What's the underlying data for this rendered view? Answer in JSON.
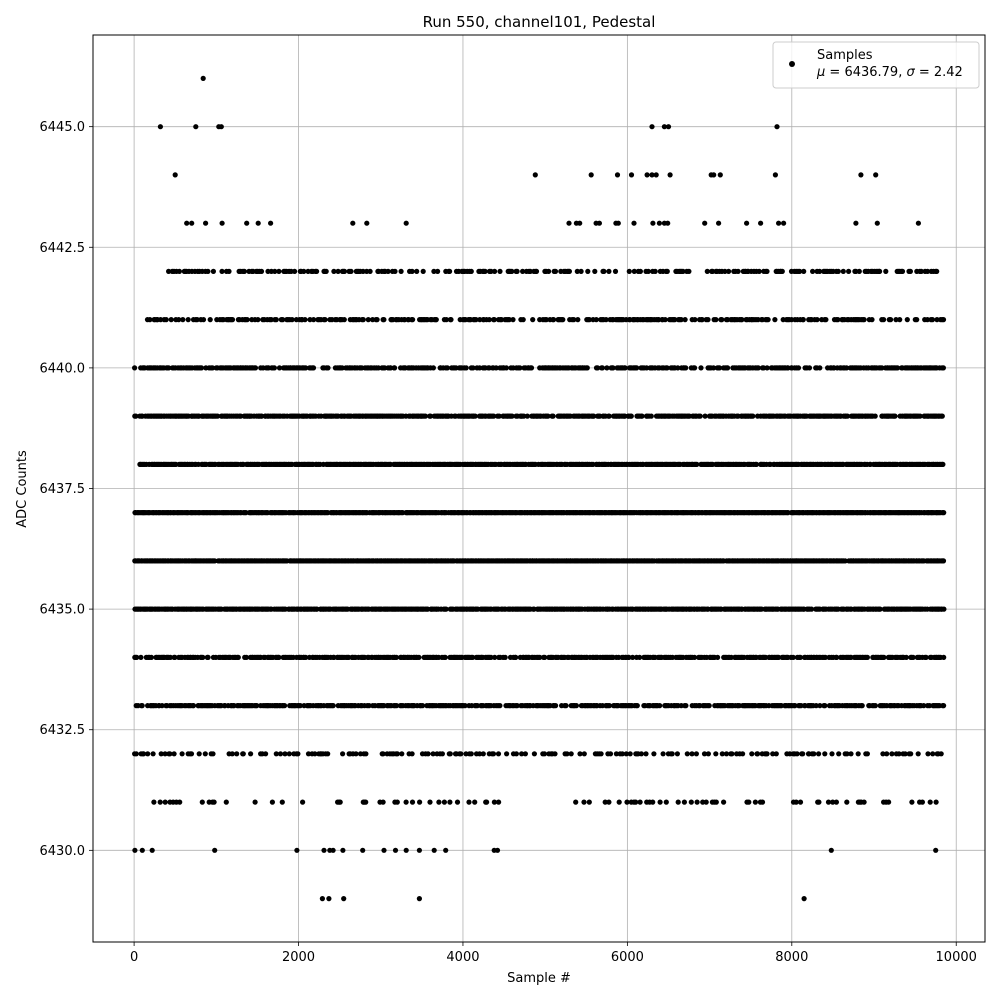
{
  "chart_data": {
    "type": "scatter",
    "title": "Run 550, channel101, Pedestal",
    "xlabel": "Sample #",
    "ylabel": "ADC Counts",
    "xlim": [
      -500,
      10350
    ],
    "ylim": [
      6428.1,
      6446.9
    ],
    "xticks": [
      0,
      2000,
      4000,
      6000,
      8000,
      10000
    ],
    "xtick_labels": [
      "0",
      "2000",
      "4000",
      "6000",
      "8000",
      "10000"
    ],
    "yticks": [
      6430.0,
      6432.5,
      6435.0,
      6437.5,
      6440.0,
      6442.5,
      6445.0
    ],
    "ytick_labels": [
      "6430.0",
      "6432.5",
      "6435.0",
      "6437.5",
      "6440.0",
      "6442.5",
      "6445.0"
    ],
    "grid": true,
    "legend_position": "top-right",
    "marker_color": "#000000",
    "series": [
      {
        "name": "Samples",
        "legend_stats": "μ = 6436.79, σ = 2.42",
        "points": [
          [
            840,
            6446
          ],
          [
            320,
            6445
          ],
          [
            750,
            6445
          ],
          [
            1030,
            6445
          ],
          [
            1060,
            6445
          ],
          [
            6300,
            6445
          ],
          [
            6450,
            6445
          ],
          [
            6500,
            6445
          ],
          [
            7820,
            6445
          ],
          [
            500,
            6444
          ],
          [
            4880,
            6444
          ],
          [
            5560,
            6444
          ],
          [
            5880,
            6444
          ],
          [
            6050,
            6444
          ],
          [
            6240,
            6444
          ],
          [
            6300,
            6444
          ],
          [
            6350,
            6444
          ],
          [
            6520,
            6444
          ],
          [
            7020,
            6444
          ],
          [
            7050,
            6444
          ],
          [
            7130,
            6444
          ],
          [
            7800,
            6444
          ],
          [
            8840,
            6444
          ],
          [
            9020,
            6444
          ],
          [
            640,
            6443
          ],
          [
            700,
            6443
          ],
          [
            870,
            6443
          ],
          [
            1070,
            6443
          ],
          [
            1370,
            6443
          ],
          [
            1510,
            6443
          ],
          [
            1660,
            6443
          ],
          [
            2660,
            6443
          ],
          [
            2830,
            6443
          ],
          [
            3310,
            6443
          ],
          [
            5290,
            6443
          ],
          [
            5380,
            6443
          ],
          [
            5420,
            6443
          ],
          [
            5620,
            6443
          ],
          [
            5660,
            6443
          ],
          [
            5860,
            6443
          ],
          [
            5890,
            6443
          ],
          [
            6080,
            6443
          ],
          [
            6310,
            6443
          ],
          [
            6390,
            6443
          ],
          [
            6450,
            6443
          ],
          [
            6490,
            6443
          ],
          [
            6940,
            6443
          ],
          [
            7110,
            6443
          ],
          [
            7450,
            6443
          ],
          [
            7620,
            6443
          ],
          [
            7840,
            6443
          ],
          [
            7900,
            6443
          ],
          [
            8780,
            6443
          ],
          [
            9040,
            6443
          ],
          [
            9540,
            6443
          ],
          [
            10,
            6430
          ],
          [
            100,
            6430
          ],
          [
            220,
            6430
          ],
          [
            980,
            6430
          ],
          [
            1980,
            6430
          ],
          [
            2310,
            6430
          ],
          [
            2380,
            6430
          ],
          [
            2420,
            6430
          ],
          [
            2540,
            6430
          ],
          [
            2780,
            6430
          ],
          [
            3040,
            6430
          ],
          [
            3180,
            6430
          ],
          [
            3310,
            6430
          ],
          [
            3470,
            6430
          ],
          [
            3650,
            6430
          ],
          [
            3790,
            6430
          ],
          [
            4380,
            6430
          ],
          [
            4420,
            6430
          ],
          [
            8480,
            6430
          ],
          [
            9750,
            6430
          ],
          [
            2290,
            6429
          ],
          [
            2370,
            6429
          ],
          [
            2550,
            6429
          ],
          [
            3470,
            6429
          ],
          [
            8150,
            6429
          ]
        ],
        "dense_bands": [
          {
            "y": 6442,
            "x_range": [
              380,
              9840
            ]
          },
          {
            "y": 6441,
            "x_range": [
              140,
              9840
            ]
          },
          {
            "y": 6440,
            "x_range": [
              0,
              9840
            ]
          },
          {
            "y": 6439,
            "x_range": [
              0,
              9840
            ]
          },
          {
            "y": 6438,
            "x_range": [
              60,
              9840
            ]
          },
          {
            "y": 6437,
            "x_range": [
              0,
              9840
            ]
          },
          {
            "y": 6436,
            "x_range": [
              0,
              9840
            ]
          },
          {
            "y": 6435,
            "x_range": [
              0,
              9840
            ]
          },
          {
            "y": 6434,
            "x_range": [
              0,
              9840
            ]
          },
          {
            "y": 6433,
            "x_range": [
              0,
              9840
            ]
          },
          {
            "y": 6432,
            "x_range": [
              0,
              9840
            ]
          },
          {
            "y": 6431,
            "x_range": [
              90,
              9800
            ]
          }
        ]
      }
    ]
  },
  "legend": {
    "label": "Samples",
    "stats_prefix_mu": "μ",
    "stats_mu_value": " = 6436.79, ",
    "stats_prefix_sigma": "σ",
    "stats_sigma_value": " = 2.42"
  }
}
